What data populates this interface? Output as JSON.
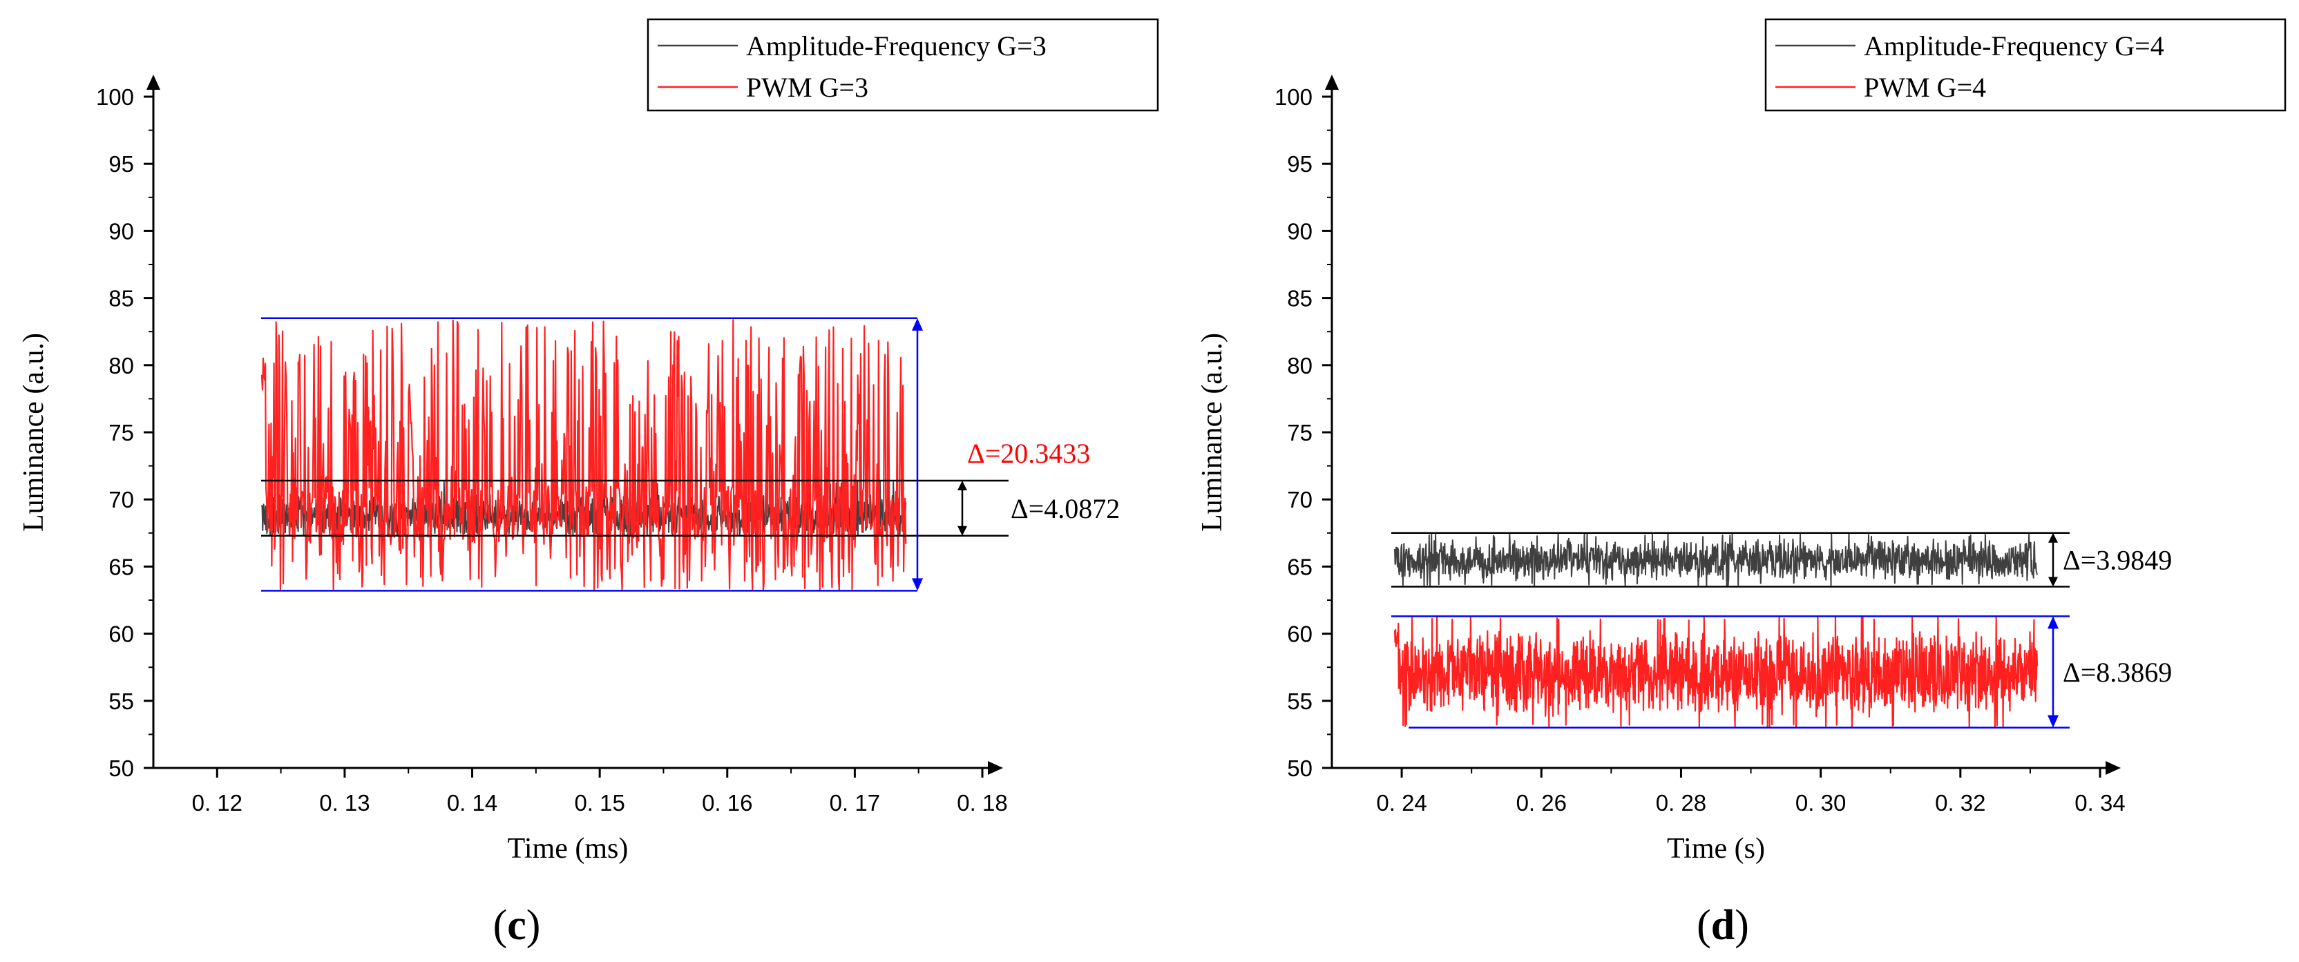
{
  "chart_data": [
    {
      "panel": "c",
      "type": "line",
      "xlabel": "Time (ms)",
      "ylabel": "Luminance (a.u.)",
      "xlim": [
        0.115,
        0.18
      ],
      "ylim": [
        50,
        100
      ],
      "xticks": [
        0.12,
        0.13,
        0.14,
        0.15,
        0.16,
        0.17,
        0.18
      ],
      "xtick_labels": [
        "0. 12",
        "0. 13",
        "0. 14",
        "0. 15",
        "0. 16",
        "0. 17",
        "0. 18"
      ],
      "yticks": [
        50,
        55,
        60,
        65,
        70,
        75,
        80,
        85,
        90,
        95,
        100
      ],
      "legend_position": "top-right",
      "series": [
        {
          "name": "Amplitude-Frequency G=3",
          "color": "#404040",
          "x_start": 0.1235,
          "x_end": 0.174,
          "baseline": 68.8,
          "min": 67.3,
          "max": 71.4,
          "description": "dense noisy signal"
        },
        {
          "name": "PWM G=3",
          "color": "#ff2020",
          "x_start": 0.1235,
          "x_end": 0.174,
          "baseline": 69.0,
          "min": 63.2,
          "max": 83.5,
          "description": "dense signal with frequent spikes"
        }
      ],
      "annotations": [
        {
          "label": "Δ=4.0872",
          "color": "#000000",
          "y_low": 67.3,
          "y_high": 71.4
        },
        {
          "label": "Δ=20.3433",
          "color": "#ff0000",
          "y_low": 63.2,
          "y_high": 83.5
        }
      ],
      "reference_lines": [
        {
          "y": 83.5,
          "color": "#0000ff"
        },
        {
          "y": 71.4,
          "color": "#000000"
        },
        {
          "y": 67.3,
          "color": "#000000"
        },
        {
          "y": 63.2,
          "color": "#0000ff"
        }
      ],
      "caption": "c"
    },
    {
      "panel": "d",
      "type": "line",
      "xlabel": "Time (s)",
      "ylabel": "Luminance (a.u.)",
      "xlim": [
        0.23,
        0.34
      ],
      "ylim": [
        50,
        100
      ],
      "xticks": [
        0.24,
        0.26,
        0.28,
        0.3,
        0.32,
        0.34
      ],
      "xtick_labels": [
        "0. 24",
        "0. 26",
        "0. 28",
        "0. 30",
        "0. 32",
        "0. 34"
      ],
      "yticks": [
        50,
        55,
        60,
        65,
        70,
        75,
        80,
        85,
        90,
        95,
        100
      ],
      "legend_position": "top-right",
      "series": [
        {
          "name": "Amplitude-Frequency G=4",
          "color": "#404040",
          "x_start": 0.239,
          "x_end": 0.331,
          "baseline": 65.5,
          "min": 63.5,
          "max": 67.5,
          "description": "dense noisy signal"
        },
        {
          "name": "PWM G=4",
          "color": "#ff2020",
          "x_start": 0.239,
          "x_end": 0.331,
          "baseline": 57.0,
          "min": 53.0,
          "max": 61.3,
          "description": "dense noisy signal"
        }
      ],
      "annotations": [
        {
          "label": "Δ=3.9849",
          "color": "#000000",
          "y_low": 63.5,
          "y_high": 67.5
        },
        {
          "label": "Δ=8.3869",
          "color": "#000000",
          "y_low": 53.0,
          "y_high": 61.3
        }
      ],
      "reference_lines": [
        {
          "y": 67.5,
          "color": "#000000"
        },
        {
          "y": 63.5,
          "color": "#000000"
        },
        {
          "y": 61.3,
          "color": "#0000ff"
        },
        {
          "y": 53.0,
          "color": "#0000ff"
        }
      ],
      "caption": "d"
    }
  ]
}
